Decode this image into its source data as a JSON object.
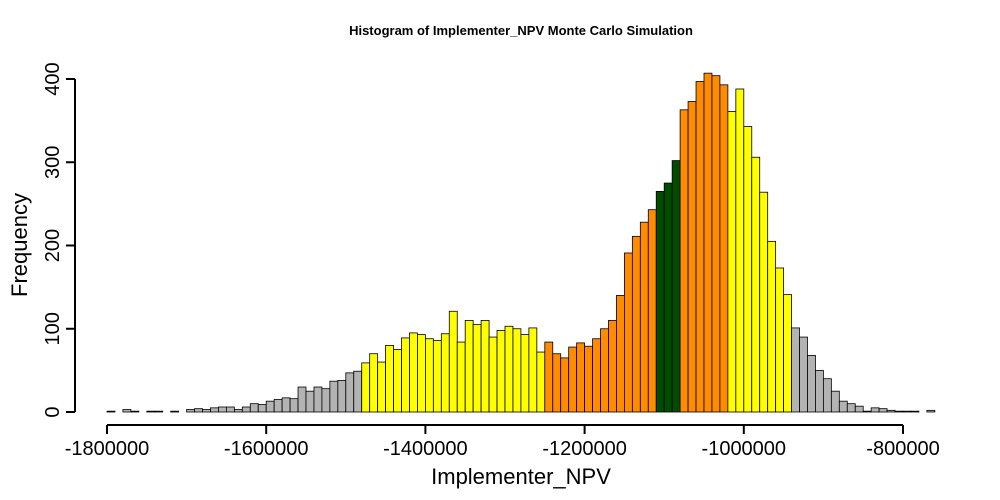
{
  "chart_data": {
    "type": "bar",
    "title": "Histogram of  Implementer_NPV  Monte Carlo Simulation",
    "xlabel": "Implementer_NPV",
    "ylabel": "Frequency",
    "xlim": [
      -1800000,
      -760000
    ],
    "ylim": [
      0,
      400
    ],
    "x_ticks": [
      -1800000,
      -1600000,
      -1400000,
      -1200000,
      -1000000,
      -800000
    ],
    "x_tick_labels": [
      "-1800000",
      "-1600000",
      "-1400000",
      "-1200000",
      "-1000000",
      "-800000"
    ],
    "y_ticks": [
      0,
      100,
      200,
      300,
      400
    ],
    "y_tick_labels": [
      "0",
      "100",
      "200",
      "300",
      "400"
    ],
    "grid": false,
    "bin_start": -1800000,
    "bin_width": 10000,
    "values": [
      1,
      0,
      3,
      1,
      0,
      1,
      1,
      0,
      1,
      0,
      3,
      4,
      3,
      5,
      6,
      6,
      3,
      6,
      10,
      9,
      13,
      15,
      17,
      16,
      30,
      25,
      30,
      28,
      37,
      38,
      47,
      49,
      59,
      70,
      60,
      80,
      75,
      89,
      95,
      93,
      88,
      86,
      94,
      121,
      84,
      110,
      105,
      110,
      90,
      98,
      103,
      100,
      93,
      101,
      72,
      84,
      70,
      65,
      78,
      83,
      79,
      88,
      100,
      110,
      140,
      191,
      211,
      228,
      243,
      265,
      275,
      302,
      363,
      373,
      397,
      407,
      404,
      393,
      361,
      388,
      343,
      306,
      264,
      205,
      173,
      141,
      101,
      90,
      68,
      50,
      40,
      25,
      13,
      10,
      7,
      1,
      5,
      4,
      2,
      1,
      1,
      1,
      0,
      2
    ],
    "bin_colors": [
      "#b3b3b3",
      "#b3b3b3",
      "#b3b3b3",
      "#b3b3b3",
      "#b3b3b3",
      "#b3b3b3",
      "#b3b3b3",
      "#b3b3b3",
      "#b3b3b3",
      "#b3b3b3",
      "#b3b3b3",
      "#b3b3b3",
      "#b3b3b3",
      "#b3b3b3",
      "#b3b3b3",
      "#b3b3b3",
      "#b3b3b3",
      "#b3b3b3",
      "#b3b3b3",
      "#b3b3b3",
      "#b3b3b3",
      "#b3b3b3",
      "#b3b3b3",
      "#b3b3b3",
      "#b3b3b3",
      "#b3b3b3",
      "#b3b3b3",
      "#b3b3b3",
      "#b3b3b3",
      "#b3b3b3",
      "#b3b3b3",
      "#b3b3b3",
      "#ffff00",
      "#ffff00",
      "#ffff00",
      "#ffff00",
      "#ffff00",
      "#ffff00",
      "#ffff00",
      "#ffff00",
      "#ffff00",
      "#ffff00",
      "#ffff00",
      "#ffff00",
      "#ffff00",
      "#ffff00",
      "#ffff00",
      "#ffff00",
      "#ffff00",
      "#ffff00",
      "#ffff00",
      "#ffff00",
      "#ffff00",
      "#ffff00",
      "#ffff00",
      "#ff8c00",
      "#ff8c00",
      "#ff8c00",
      "#ff8c00",
      "#ff8c00",
      "#ff8c00",
      "#ff8c00",
      "#ff8c00",
      "#ff8c00",
      "#ff8c00",
      "#ff8c00",
      "#ff8c00",
      "#ff8c00",
      "#ff8c00",
      "#004d00",
      "#004d00",
      "#004d00",
      "#ff8c00",
      "#ff8c00",
      "#ff8c00",
      "#ff8c00",
      "#ff8c00",
      "#ff8c00",
      "#ffff00",
      "#ffff00",
      "#ffff00",
      "#ffff00",
      "#ffff00",
      "#ffff00",
      "#ffff00",
      "#ffff00",
      "#b3b3b3",
      "#b3b3b3",
      "#b3b3b3",
      "#b3b3b3",
      "#b3b3b3",
      "#b3b3b3",
      "#b3b3b3",
      "#b3b3b3",
      "#b3b3b3",
      "#b3b3b3",
      "#b3b3b3",
      "#b3b3b3",
      "#b3b3b3",
      "#b3b3b3",
      "#b3b3b3",
      "#b3b3b3",
      "#b3b3b3",
      "#b3b3b3"
    ],
    "colors": {
      "tail": "#b3b3b3",
      "mid": "#ffff00",
      "inner": "#ff8c00",
      "center": "#004d00"
    }
  }
}
